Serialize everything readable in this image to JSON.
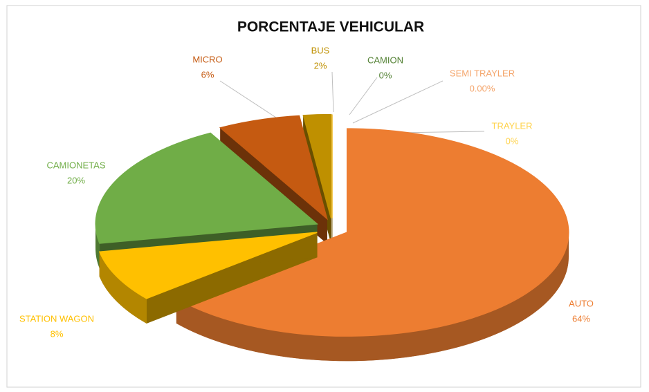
{
  "chart_data": {
    "type": "pie",
    "title": "PORCENTAJE VEHICULAR",
    "categories": [
      "AUTO",
      "STATION WAGON",
      "CAMIONETAS",
      "MICRO",
      "BUS",
      "CAMION",
      "SEMI TRAYLER",
      "TRAYLER"
    ],
    "values": [
      64,
      8,
      20,
      6,
      2,
      0,
      0,
      0
    ],
    "value_labels": [
      "64%",
      "8%",
      "20%",
      "6%",
      "2%",
      "0%",
      "0.00%",
      "0%"
    ],
    "colors": [
      "#ED7D31",
      "#FFC000",
      "#70AD47",
      "#C55A11",
      "#BF9000",
      "#548235",
      "#F4A46A",
      "#FFD34D"
    ]
  }
}
